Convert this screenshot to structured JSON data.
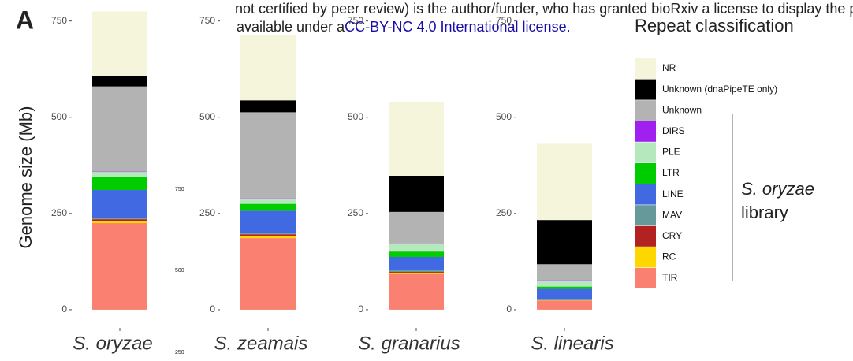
{
  "header": {
    "line1": "not certified by peer review) is the author/funder, who has granted bioRxiv a license to display the preprint in perpet",
    "line2": "available under a",
    "link": "CC-BY-NC 4.0 International license."
  },
  "panel_label": "A",
  "stray_labels": [
    "750",
    "500",
    "250"
  ],
  "chart_data": {
    "type": "bar",
    "stacked": true,
    "y_label": "Genome size (Mb)",
    "legend_title": "Repeat classification",
    "annotation": {
      "species": "S. oryzae",
      "text": "library"
    },
    "categories": [
      "S. oryzae",
      "S. zeamais",
      "S. granarius",
      "S. linearis"
    ],
    "ylim": [
      -35,
      780
    ],
    "yticks": [
      0,
      250,
      500,
      750
    ],
    "series": [
      {
        "name": "TIR",
        "color": "#fa8072",
        "values": [
          225,
          186,
          92,
          23
        ]
      },
      {
        "name": "RC",
        "color": "#ffd700",
        "values": [
          5,
          6,
          4,
          1
        ]
      },
      {
        "name": "CRY",
        "color": "#b22222",
        "values": [
          5,
          4,
          2,
          1
        ]
      },
      {
        "name": "MAV",
        "color": "#66999a",
        "values": [
          2,
          2,
          4,
          3
        ]
      },
      {
        "name": "LINE",
        "color": "#4169e1",
        "values": [
          74,
          59,
          35,
          26
        ]
      },
      {
        "name": "LTR",
        "color": "#00cc00",
        "values": [
          33,
          18,
          14,
          6
        ]
      },
      {
        "name": "PLE",
        "color": "#b5e8bd",
        "values": [
          14,
          14,
          20,
          16
        ]
      },
      {
        "name": "DIRS",
        "color": "#a020f0",
        "values": [
          1,
          1,
          1,
          1
        ]
      },
      {
        "name": "Unknown",
        "color": "#b3b3b3",
        "values": [
          221,
          223,
          82,
          41
        ]
      },
      {
        "name": "Unknown (dnaPipeTE only)",
        "color": "#000000",
        "values": [
          27,
          31,
          94,
          115
        ]
      },
      {
        "name": "NR",
        "color": "#f5f5dc",
        "values": [
          168,
          170,
          191,
          198
        ]
      }
    ]
  }
}
